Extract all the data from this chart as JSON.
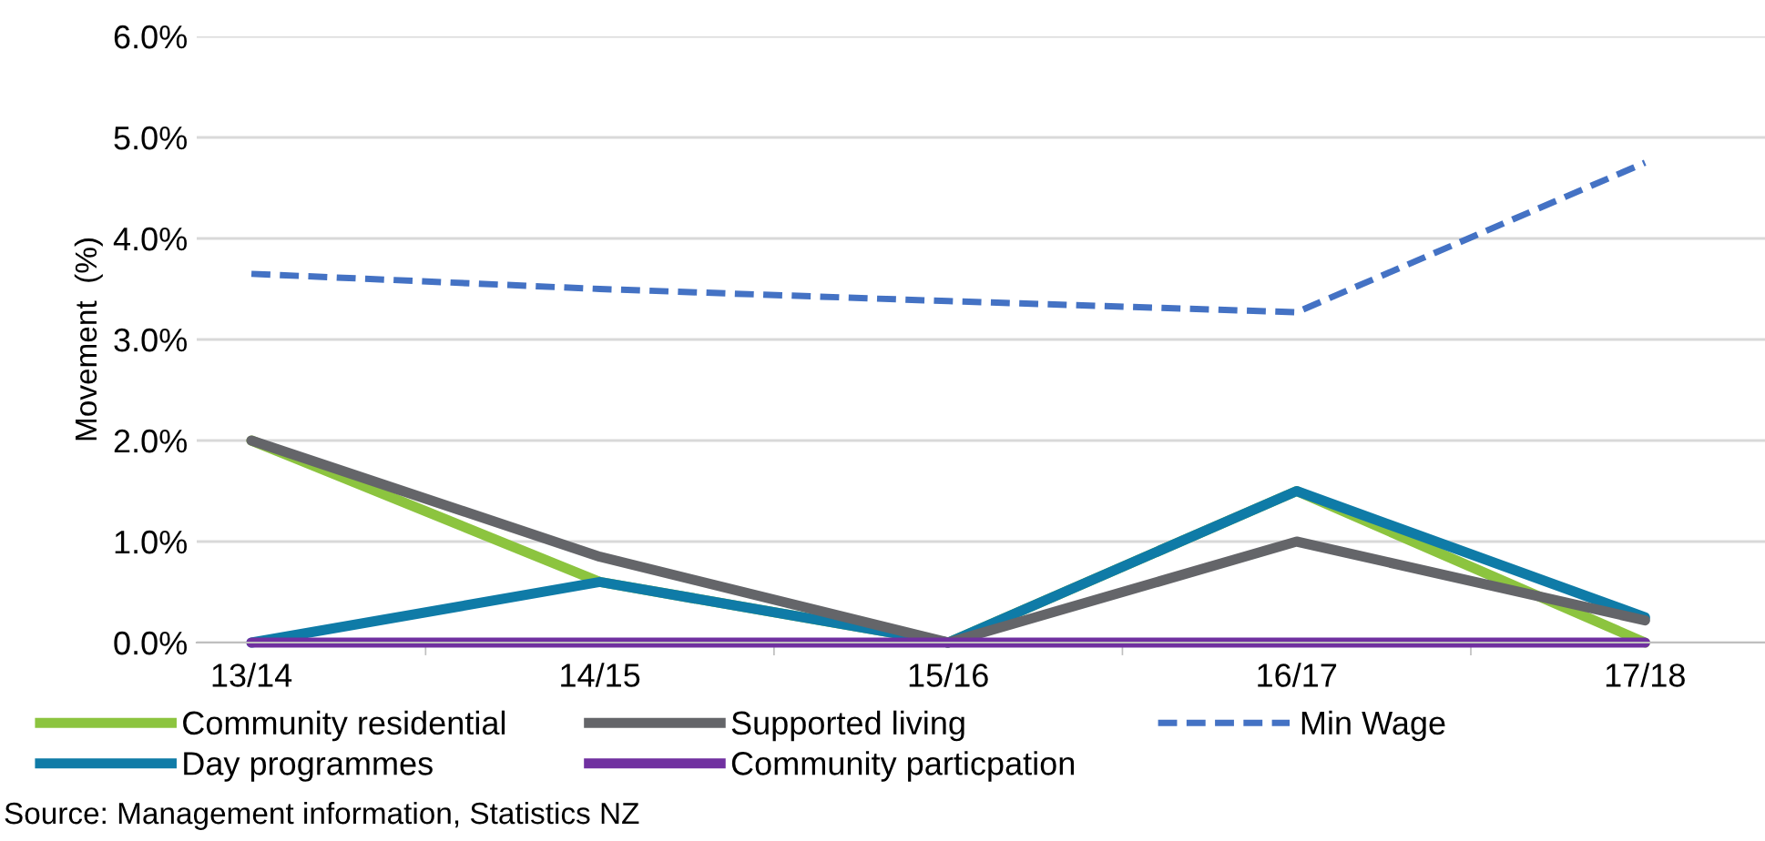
{
  "chart_data": {
    "type": "line",
    "ylabel": "Movement  (%)",
    "categories": [
      "13/14",
      "14/15",
      "15/16",
      "16/17",
      "17/18"
    ],
    "series": [
      {
        "name": "Community residential",
        "color": "#8cc43f",
        "line_style": "solid",
        "values": [
          2.0,
          0.6,
          0,
          1.5,
          0
        ]
      },
      {
        "name": "Day programmes",
        "color": "#0f7ba7",
        "line_style": "solid",
        "values": [
          0,
          0.6,
          0,
          1.5,
          0.25
        ]
      },
      {
        "name": "Supported living",
        "color": "#646569",
        "line_style": "solid",
        "values": [
          2.0,
          0.85,
          0,
          1.0,
          0.22
        ]
      },
      {
        "name": "Community particpation",
        "color": "#7030a0",
        "line_style": "solid",
        "values": [
          0,
          0,
          0,
          0,
          0
        ]
      },
      {
        "name": "Min Wage",
        "color": "#4472c4",
        "line_style": "dashed",
        "values": [
          3.65,
          3.5,
          3.38,
          3.27,
          4.75
        ]
      }
    ],
    "ylim": [
      0,
      6
    ],
    "yticks": [
      {
        "value": 0,
        "label": "0.0%"
      },
      {
        "value": 1,
        "label": "1.0%"
      },
      {
        "value": 2,
        "label": "2.0%"
      },
      {
        "value": 3,
        "label": "3.0%"
      },
      {
        "value": 4,
        "label": "4.0%"
      },
      {
        "value": 5,
        "label": "5.0%"
      },
      {
        "value": 6,
        "label": "6.0%"
      }
    ],
    "grid": "y",
    "legend": "bottom",
    "marker": "none",
    "annotations": [
      "Source: Management information, Statistics NZ"
    ]
  }
}
